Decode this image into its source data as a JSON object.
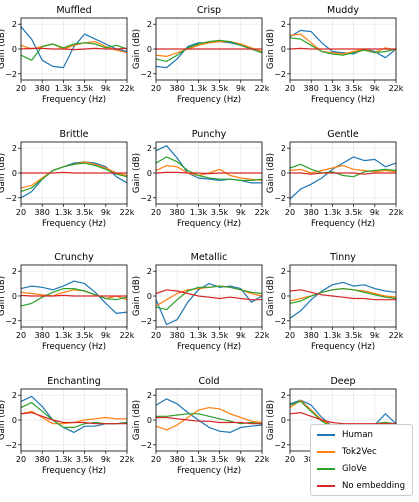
{
  "chart_data": {
    "type": "line",
    "xlabel": "Frequency (Hz)",
    "ylabel": "Gain (dB)",
    "xticks": [
      "20",
      "380",
      "1.3k",
      "3.5k",
      "9k",
      "22k"
    ],
    "yticks": [
      -2,
      0,
      2
    ],
    "ylim": [
      -2.5,
      2.5
    ],
    "grid": true,
    "legend_placement": "bottom-right",
    "series_names": [
      "Human",
      "Tok2Vec",
      "GloVe",
      "No embedding"
    ],
    "colors": {
      "Human": "#1f77b4",
      "Tok2Vec": "#ff7f0e",
      "GloVe": "#2ca02c",
      "No embedding": "#d62728"
    },
    "panels": [
      {
        "title": "Muffled",
        "series": [
          {
            "name": "Human",
            "values": [
              1.8,
              0.8,
              -0.9,
              -1.4,
              -1.5,
              0.2,
              1.2,
              0.8,
              0.4,
              0.0,
              -0.2
            ]
          },
          {
            "name": "Tok2Vec",
            "values": [
              0.3,
              0.0,
              0.2,
              0.4,
              0.0,
              0.3,
              0.5,
              0.6,
              0.2,
              -0.1,
              -0.3
            ]
          },
          {
            "name": "GloVe",
            "values": [
              -0.5,
              -0.9,
              0.2,
              0.4,
              0.1,
              0.4,
              0.5,
              0.4,
              0.1,
              0.3,
              0.0
            ]
          },
          {
            "name": "No embedding",
            "values": [
              0.0,
              0.05,
              0.05,
              0.0,
              0.0,
              -0.05,
              0.0,
              0.05,
              0.0,
              0.0,
              0.05
            ]
          }
        ]
      },
      {
        "title": "Crisp",
        "series": [
          {
            "name": "Human",
            "values": [
              -1.4,
              -1.5,
              -0.8,
              0.2,
              0.5,
              0.5,
              0.6,
              0.5,
              0.3,
              0.0,
              -0.3
            ]
          },
          {
            "name": "Tok2Vec",
            "values": [
              -0.5,
              -0.6,
              -0.3,
              0.0,
              0.3,
              0.5,
              0.6,
              0.6,
              0.4,
              0.1,
              -0.2
            ]
          },
          {
            "name": "GloVe",
            "values": [
              -0.8,
              -1.0,
              -0.5,
              0.1,
              0.4,
              0.6,
              0.7,
              0.6,
              0.3,
              0.0,
              -0.3
            ]
          },
          {
            "name": "No embedding",
            "values": [
              0.0,
              0.0,
              0.0,
              0.0,
              0.0,
              0.0,
              0.0,
              0.0,
              0.0,
              0.0,
              0.0
            ]
          }
        ]
      },
      {
        "title": "Muddy",
        "series": [
          {
            "name": "Human",
            "values": [
              1.0,
              1.5,
              1.4,
              0.5,
              -0.2,
              -0.3,
              -0.4,
              0.0,
              -0.2,
              -0.7,
              0.0
            ]
          },
          {
            "name": "Tok2Vec",
            "values": [
              1.1,
              1.2,
              0.5,
              -0.2,
              -0.3,
              -0.4,
              -0.2,
              0.0,
              -0.3,
              0.1,
              -0.1
            ]
          },
          {
            "name": "GloVe",
            "values": [
              0.9,
              0.8,
              0.3,
              -0.2,
              -0.4,
              -0.5,
              -0.3,
              -0.1,
              -0.3,
              -0.2,
              0.0
            ]
          },
          {
            "name": "No embedding",
            "values": [
              0.0,
              0.05,
              0.0,
              0.0,
              0.0,
              0.0,
              0.0,
              0.0,
              0.0,
              0.0,
              0.0
            ]
          }
        ]
      },
      {
        "title": "Brittle",
        "series": [
          {
            "name": "Human",
            "values": [
              -2.0,
              -1.5,
              -0.5,
              0.2,
              0.5,
              0.8,
              0.9,
              0.8,
              0.5,
              -0.3,
              -0.8
            ]
          },
          {
            "name": "Tok2Vec",
            "values": [
              -1.2,
              -1.0,
              -0.4,
              0.2,
              0.5,
              0.7,
              0.9,
              0.7,
              0.4,
              0.0,
              -0.2
            ]
          },
          {
            "name": "GloVe",
            "values": [
              -1.5,
              -1.2,
              -0.5,
              0.2,
              0.5,
              0.7,
              0.8,
              0.6,
              0.3,
              -0.1,
              -0.3
            ]
          },
          {
            "name": "No embedding",
            "values": [
              0.0,
              0.0,
              0.0,
              0.0,
              0.05,
              0.0,
              0.0,
              0.0,
              0.0,
              0.0,
              0.0
            ]
          }
        ]
      },
      {
        "title": "Punchy",
        "series": [
          {
            "name": "Human",
            "values": [
              1.8,
              2.2,
              1.2,
              0.0,
              -0.4,
              -0.5,
              -0.6,
              -0.5,
              -0.6,
              -0.8,
              -0.8
            ]
          },
          {
            "name": "Tok2Vec",
            "values": [
              0.2,
              0.6,
              0.5,
              0.0,
              -0.2,
              0.0,
              0.3,
              -0.2,
              -0.4,
              -0.5,
              -0.6
            ]
          },
          {
            "name": "GloVe",
            "values": [
              0.8,
              1.3,
              0.9,
              0.2,
              -0.2,
              -0.4,
              -0.5,
              -0.5,
              -0.6,
              -0.6,
              -0.5
            ]
          },
          {
            "name": "No embedding",
            "values": [
              0.0,
              0.05,
              0.05,
              0.0,
              0.0,
              -0.05,
              0.0,
              0.0,
              0.0,
              0.0,
              0.0
            ]
          }
        ]
      },
      {
        "title": "Gentle",
        "series": [
          {
            "name": "Human",
            "values": [
              -2.1,
              -1.3,
              -0.9,
              -0.4,
              0.3,
              0.8,
              1.3,
              1.0,
              1.1,
              0.5,
              0.8
            ]
          },
          {
            "name": "Tok2Vec",
            "values": [
              0.2,
              0.3,
              0.0,
              0.2,
              0.4,
              0.6,
              0.3,
              0.2,
              0.1,
              0.2,
              0.1
            ]
          },
          {
            "name": "GloVe",
            "values": [
              0.4,
              0.7,
              0.3,
              0.0,
              0.1,
              -0.2,
              -0.3,
              0.1,
              0.2,
              0.3,
              0.2
            ]
          },
          {
            "name": "No embedding",
            "values": [
              0.0,
              0.0,
              -0.1,
              0.0,
              0.0,
              0.0,
              0.0,
              -0.1,
              0.0,
              0.0,
              0.0
            ]
          }
        ]
      },
      {
        "title": "Crunchy",
        "series": [
          {
            "name": "Human",
            "values": [
              0.6,
              0.8,
              0.7,
              0.5,
              0.8,
              1.2,
              1.0,
              0.3,
              -0.6,
              -1.4,
              -1.3
            ]
          },
          {
            "name": "Tok2Vec",
            "values": [
              0.3,
              0.2,
              0.1,
              0.0,
              0.3,
              0.5,
              0.4,
              0.1,
              -0.2,
              0.0,
              -0.3
            ]
          },
          {
            "name": "GloVe",
            "values": [
              -0.8,
              -0.6,
              -0.1,
              0.3,
              0.6,
              0.6,
              0.4,
              0.1,
              -0.2,
              -0.3,
              -0.1
            ]
          },
          {
            "name": "No embedding",
            "values": [
              0.05,
              0.0,
              0.0,
              0.0,
              0.05,
              0.0,
              0.0,
              0.0,
              0.0,
              0.0,
              0.0
            ]
          }
        ]
      },
      {
        "title": "Metallic",
        "series": [
          {
            "name": "Human",
            "values": [
              -0.3,
              -2.3,
              -1.9,
              -0.5,
              0.5,
              1.0,
              0.7,
              0.8,
              0.6,
              -0.5,
              0.0
            ]
          },
          {
            "name": "Tok2Vec",
            "values": [
              -0.8,
              -0.3,
              0.2,
              0.5,
              0.6,
              0.7,
              0.8,
              0.7,
              0.5,
              0.2,
              0.0
            ]
          },
          {
            "name": "GloVe",
            "values": [
              -0.9,
              -1.1,
              -0.3,
              0.4,
              0.7,
              0.7,
              0.8,
              0.7,
              0.5,
              0.3,
              0.2
            ]
          },
          {
            "name": "No embedding",
            "values": [
              0.2,
              0.5,
              0.4,
              0.2,
              0.0,
              -0.1,
              -0.2,
              -0.1,
              -0.2,
              -0.3,
              -0.3
            ]
          }
        ]
      },
      {
        "title": "Tinny",
        "series": [
          {
            "name": "Human",
            "values": [
              -1.8,
              -1.2,
              -0.3,
              0.4,
              0.9,
              1.1,
              0.8,
              0.9,
              0.6,
              0.4,
              0.3
            ]
          },
          {
            "name": "Tok2Vec",
            "values": [
              -0.4,
              -0.2,
              0.0,
              0.3,
              0.5,
              0.6,
              0.5,
              0.4,
              0.2,
              0.0,
              -0.1
            ]
          },
          {
            "name": "GloVe",
            "values": [
              -0.6,
              -0.4,
              0.0,
              0.3,
              0.5,
              0.6,
              0.5,
              0.3,
              0.1,
              -0.1,
              -0.2
            ]
          },
          {
            "name": "No embedding",
            "values": [
              0.4,
              0.5,
              0.3,
              0.1,
              0.0,
              -0.1,
              -0.2,
              -0.2,
              -0.3,
              -0.3,
              -0.3
            ]
          }
        ]
      },
      {
        "title": "Enchanting",
        "series": [
          {
            "name": "Human",
            "values": [
              1.5,
              1.9,
              1.1,
              0.0,
              -0.6,
              -1.0,
              -0.5,
              -0.5,
              -0.3,
              -0.3,
              -0.2
            ]
          },
          {
            "name": "Tok2Vec",
            "values": [
              0.5,
              0.7,
              0.2,
              -0.3,
              -0.3,
              -0.2,
              0.0,
              0.1,
              0.2,
              0.1,
              0.1
            ]
          },
          {
            "name": "GloVe",
            "values": [
              1.0,
              1.4,
              0.7,
              0.0,
              -0.6,
              -0.6,
              -0.3,
              -0.2,
              -0.3,
              -0.3,
              -0.2
            ]
          },
          {
            "name": "No embedding",
            "values": [
              0.5,
              0.6,
              0.3,
              0.0,
              -0.2,
              -0.2,
              -0.2,
              -0.3,
              -0.3,
              -0.3,
              -0.3
            ]
          }
        ]
      },
      {
        "title": "Cold",
        "series": [
          {
            "name": "Human",
            "values": [
              1.2,
              1.7,
              1.3,
              0.6,
              0.0,
              -0.6,
              -0.9,
              -1.0,
              -0.6,
              -0.5,
              -0.4
            ]
          },
          {
            "name": "Tok2Vec",
            "values": [
              -0.5,
              -0.8,
              -0.4,
              0.2,
              0.8,
              1.0,
              0.9,
              0.5,
              0.2,
              -0.1,
              -0.2
            ]
          },
          {
            "name": "GloVe",
            "values": [
              0.3,
              0.3,
              0.4,
              0.5,
              0.5,
              0.3,
              0.1,
              -0.1,
              -0.3,
              -0.2,
              -0.3
            ]
          },
          {
            "name": "No embedding",
            "values": [
              0.2,
              0.2,
              0.1,
              0.0,
              -0.1,
              -0.1,
              -0.2,
              -0.2,
              -0.2,
              -0.3,
              -0.3
            ]
          }
        ]
      },
      {
        "title": "Deep",
        "series": [
          {
            "name": "Human",
            "values": [
              1.3,
              1.6,
              1.2,
              0.2,
              -0.5,
              -1.1,
              -1.3,
              -0.9,
              -0.4,
              0.5,
              -0.3
            ]
          },
          {
            "name": "Tok2Vec",
            "values": [
              1.0,
              1.6,
              0.8,
              0.0,
              -0.5,
              -0.8,
              -1.0,
              -0.6,
              -0.3,
              -0.2,
              -0.4
            ]
          },
          {
            "name": "GloVe",
            "values": [
              1.2,
              1.5,
              0.7,
              -0.1,
              -0.6,
              -1.0,
              -1.1,
              -0.7,
              -0.3,
              -0.2,
              -0.3
            ]
          },
          {
            "name": "No embedding",
            "values": [
              0.5,
              0.6,
              0.3,
              0.0,
              -0.2,
              -0.3,
              -0.3,
              -0.3,
              -0.3,
              -0.3,
              -0.3
            ]
          }
        ]
      }
    ]
  }
}
